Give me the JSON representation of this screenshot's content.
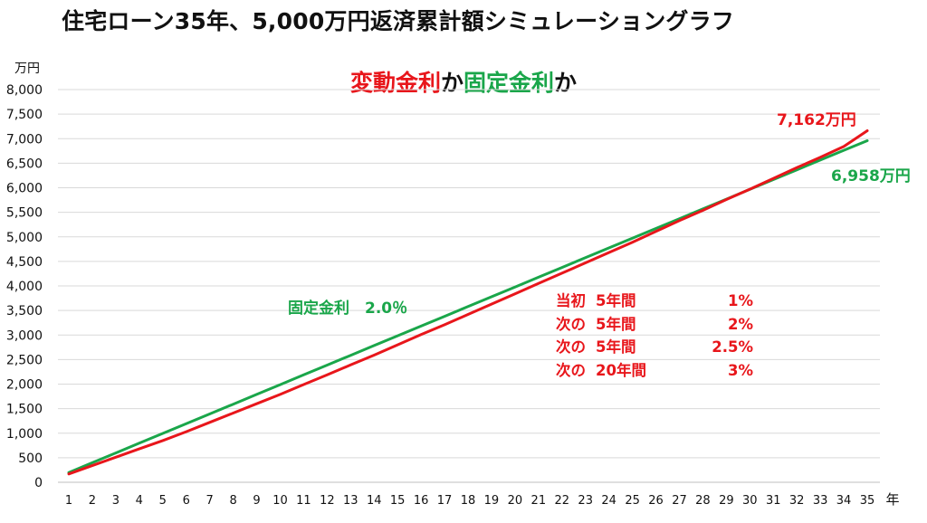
{
  "header": {
    "title": "住宅ローン35年、5,000万円返済累計額シミュレーショングラフ",
    "subtitle_part1": "変動金利",
    "subtitle_part2": "か",
    "subtitle_part3": "固定金利",
    "subtitle_part4": "か"
  },
  "colors": {
    "variable": "#e8161b",
    "fixed": "#1aa64a",
    "text": "#111111",
    "grid": "#d9d9d9"
  },
  "chart_data": {
    "type": "line",
    "ylabel": "万円",
    "xlabel": "年",
    "ylim": [
      0,
      8000
    ],
    "yticks": [
      0,
      500,
      1000,
      1500,
      2000,
      2500,
      3000,
      3500,
      4000,
      4500,
      5000,
      5500,
      6000,
      6500,
      7000,
      7500,
      8000
    ],
    "ytick_labels": [
      "0",
      "500",
      "1,000",
      "1,500",
      "2,000",
      "2,500",
      "3,000",
      "3,500",
      "4,000",
      "4,500",
      "5,000",
      "5,500",
      "6,000",
      "6,500",
      "7,000",
      "7,500",
      "8,000"
    ],
    "x": [
      1,
      2,
      3,
      4,
      5,
      6,
      7,
      8,
      9,
      10,
      11,
      12,
      13,
      14,
      15,
      16,
      17,
      18,
      19,
      20,
      21,
      22,
      23,
      24,
      25,
      26,
      27,
      28,
      29,
      30,
      31,
      32,
      33,
      34,
      35
    ],
    "grid": true,
    "series": [
      {
        "key": "fixed",
        "values": [
          199,
          398,
          597,
          796,
          995,
          1193,
          1392,
          1591,
          1790,
          1989,
          2188,
          2387,
          2586,
          2785,
          2984,
          3182,
          3381,
          3580,
          3779,
          3978,
          4177,
          4376,
          4575,
          4774,
          4973,
          5171,
          5370,
          5569,
          5768,
          5967,
          6166,
          6365,
          6564,
          6763,
          6958
        ]
      },
      {
        "key": "variable",
        "values": [
          170,
          340,
          510,
          680,
          850,
          1030,
          1220,
          1410,
          1600,
          1790,
          1990,
          2190,
          2390,
          2590,
          2800,
          3010,
          3210,
          3420,
          3630,
          3840,
          4050,
          4260,
          4470,
          4680,
          4890,
          5110,
          5330,
          5540,
          5760,
          5970,
          6190,
          6410,
          6620,
          6840,
          7162
        ]
      }
    ],
    "end_labels": {
      "variable": "7,162万円",
      "fixed": "6,958万円"
    },
    "annotations": {
      "fixed_note": "固定金利　2.0％",
      "variable_rates": [
        {
          "label": "当初",
          "period": "5年間",
          "rate": "1%"
        },
        {
          "label": "次の",
          "period": "5年間",
          "rate": "2%"
        },
        {
          "label": "次の",
          "period": "5年間",
          "rate": "2.5%"
        },
        {
          "label": "次の",
          "period": "20年間",
          "rate": "3%"
        }
      ]
    }
  }
}
